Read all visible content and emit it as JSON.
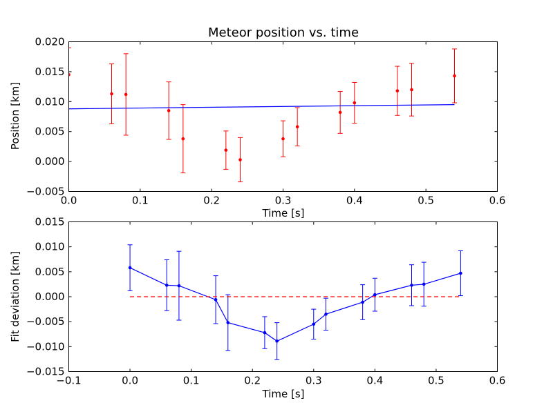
{
  "chart_data": [
    {
      "type": "scatter",
      "title": "Meteor position vs. time",
      "xlabel": "Time [s]",
      "ylabel": "Position [km]",
      "xlim": [
        0.0,
        0.6
      ],
      "ylim": [
        -0.005,
        0.02
      ],
      "xticks": [
        0.0,
        0.1,
        0.2,
        0.3,
        0.4,
        0.5,
        0.6
      ],
      "xtick_labels": [
        "0.0",
        "0.1",
        "0.2",
        "0.3",
        "0.4",
        "0.5",
        "0.6"
      ],
      "yticks": [
        -0.005,
        0.0,
        0.005,
        0.01,
        0.015,
        0.02
      ],
      "ytick_labels": [
        "−0.005",
        "0.000",
        "0.005",
        "0.010",
        "0.015",
        "0.020"
      ],
      "grid": false,
      "colors": {
        "points": "#ff0000",
        "fit": "#0000ff"
      },
      "series": [
        {
          "kind": "errorbar",
          "color": "#ff0000",
          "x": [
            0.0,
            0.06,
            0.08,
            0.14,
            0.16,
            0.22,
            0.24,
            0.3,
            0.32,
            0.38,
            0.4,
            0.46,
            0.48,
            0.54
          ],
          "y": [
            0.0145,
            0.0113,
            0.0112,
            0.0085,
            0.0038,
            0.0019,
            0.0003,
            0.0038,
            0.0058,
            0.0082,
            0.0098,
            0.0118,
            0.012,
            0.0143
          ],
          "err": [
            0.0045,
            0.005,
            0.0068,
            0.0048,
            0.0057,
            0.0032,
            0.0037,
            0.003,
            0.0032,
            0.0035,
            0.0034,
            0.0041,
            0.0044,
            0.0045
          ]
        },
        {
          "kind": "line",
          "color": "#0000ff",
          "x": [
            0.0,
            0.54
          ],
          "y": [
            0.0088,
            0.0095
          ]
        }
      ]
    },
    {
      "type": "line",
      "title": "",
      "xlabel": "Time [s]",
      "ylabel": "Fit deviation [km]",
      "xlim": [
        -0.1,
        0.6
      ],
      "ylim": [
        -0.015,
        0.015
      ],
      "xticks": [
        -0.1,
        0.0,
        0.1,
        0.2,
        0.3,
        0.4,
        0.5,
        0.6
      ],
      "xtick_labels": [
        "−0.1",
        "0.0",
        "0.1",
        "0.2",
        "0.3",
        "0.4",
        "0.5",
        "0.6"
      ],
      "yticks": [
        -0.015,
        -0.01,
        -0.005,
        0.0,
        0.005,
        0.01,
        0.015
      ],
      "ytick_labels": [
        "−0.015",
        "−0.010",
        "−0.005",
        "0.000",
        "0.005",
        "0.010",
        "0.015"
      ],
      "grid": false,
      "colors": {
        "deviation": "#0000ff",
        "zero_line": "#ff0000"
      },
      "series": [
        {
          "kind": "errorbar-line",
          "color": "#0000ff",
          "x": [
            0.0,
            0.06,
            0.08,
            0.14,
            0.16,
            0.22,
            0.24,
            0.3,
            0.32,
            0.38,
            0.4,
            0.46,
            0.48,
            0.54
          ],
          "y": [
            0.0058,
            0.0023,
            0.0022,
            -0.0006,
            -0.0052,
            -0.0072,
            -0.0089,
            -0.0055,
            -0.0035,
            -0.0011,
            0.0004,
            0.0023,
            0.0025,
            0.0047
          ],
          "err": [
            0.0046,
            0.0051,
            0.0069,
            0.0048,
            0.0056,
            0.0032,
            0.0037,
            0.003,
            0.0032,
            0.0035,
            0.0033,
            0.0041,
            0.0044,
            0.0045
          ]
        },
        {
          "kind": "dashed-line",
          "color": "#ff0000",
          "x": [
            0.0,
            0.54
          ],
          "y": [
            0.0,
            0.0
          ]
        }
      ]
    }
  ]
}
